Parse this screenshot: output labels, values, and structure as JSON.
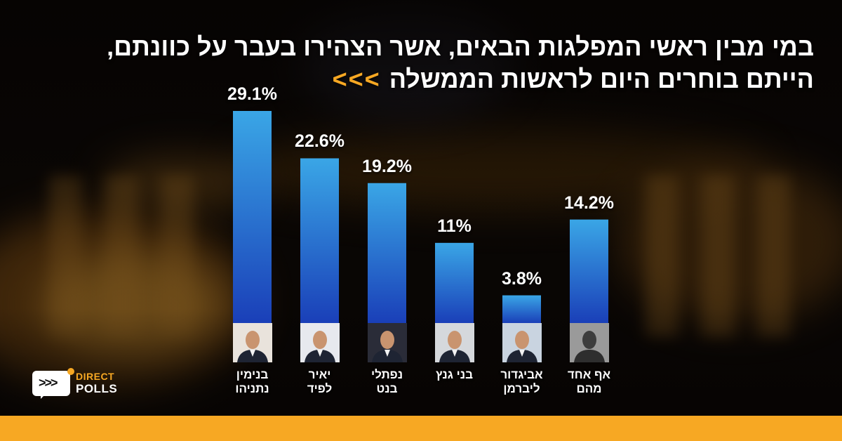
{
  "header": {
    "title_line1": "במי מבין ראשי המפלגות הבאים, אשר הצהירו בעבר על כוונתם,",
    "title_line2": "הייתם בוחרים היום לראשות הממשלה",
    "arrows": "<<<"
  },
  "brand": {
    "logo_line1": "DIRECT",
    "logo_line2": "POLLS",
    "logo_chevrons": ">>>",
    "accent_color": "#f7a823"
  },
  "chart_data": {
    "type": "bar",
    "categories": [
      "בנימין\nנתניהו",
      "יאיר\nלפיד",
      "נפתלי\nבנט",
      "בני גנץ",
      "אביגדור\nליברמן",
      "אף אחד\nמהם"
    ],
    "values": [
      29.1,
      22.6,
      19.2,
      11,
      3.8,
      14.2
    ],
    "value_labels": [
      "29.1%",
      "22.6%",
      "19.2%",
      "11%",
      "3.8%",
      "14.2%"
    ],
    "title": "",
    "xlabel": "",
    "ylabel": "",
    "ylim": [
      0,
      30
    ],
    "grid": false,
    "bar_color_top": "#3aa6e6",
    "bar_color_bottom": "#1a3fb8"
  }
}
